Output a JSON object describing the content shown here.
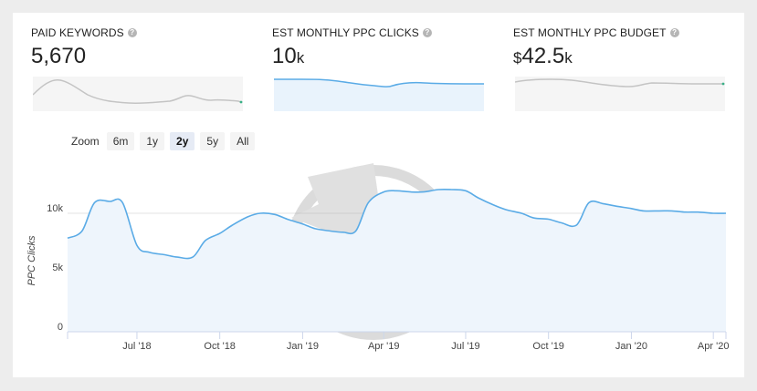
{
  "metrics": [
    {
      "label": "PAID KEYWORDS",
      "value": "5,670",
      "suffix": "",
      "prefix": ""
    },
    {
      "label": "EST MONTHLY PPC CLICKS",
      "value": "10",
      "suffix": "k",
      "prefix": ""
    },
    {
      "label": "EST MONTHLY PPC BUDGET",
      "value": "42.5",
      "suffix": "k",
      "prefix": "$"
    }
  ],
  "zoom": {
    "label": "Zoom",
    "options": [
      "6m",
      "1y",
      "2y",
      "5y",
      "All"
    ],
    "selected": "2y"
  },
  "colors": {
    "line": "#5aabe6",
    "fill": "#eef5fc",
    "spark_gray": "#c4c4c4",
    "grid": "#e3e3e3"
  },
  "chart_data": {
    "type": "area",
    "ylabel": "PPC Clicks",
    "ylim": [
      0,
      14000
    ],
    "y_ticks": [
      {
        "label": "0",
        "value": 0
      },
      {
        "label": "5k",
        "value": 5000
      },
      {
        "label": "10k",
        "value": 10000
      }
    ],
    "x_ticks": [
      {
        "label": "Jul '18",
        "date": "2018-07-01"
      },
      {
        "label": "Oct '18",
        "date": "2018-10-01"
      },
      {
        "label": "Jan '19",
        "date": "2019-01-01"
      },
      {
        "label": "Apr '19",
        "date": "2019-04-01"
      },
      {
        "label": "Jul '19",
        "date": "2019-07-01"
      },
      {
        "label": "Oct '19",
        "date": "2019-10-01"
      },
      {
        "label": "Jan '20",
        "date": "2020-01-01"
      },
      {
        "label": "Apr '20",
        "date": "2020-04-01"
      }
    ],
    "x_range": [
      "2018-04-15",
      "2020-04-15"
    ],
    "series": [
      {
        "values": [
          [
            "2018-04-15",
            7900
          ],
          [
            "2018-05-01",
            8500
          ],
          [
            "2018-05-15",
            10900
          ],
          [
            "2018-06-01",
            11000
          ],
          [
            "2018-06-15",
            10900
          ],
          [
            "2018-07-01",
            7300
          ],
          [
            "2018-07-15",
            6700
          ],
          [
            "2018-08-01",
            6500
          ],
          [
            "2018-08-15",
            6300
          ],
          [
            "2018-09-01",
            6300
          ],
          [
            "2018-09-15",
            7700
          ],
          [
            "2018-10-01",
            8300
          ],
          [
            "2018-10-15",
            9000
          ],
          [
            "2018-11-01",
            9700
          ],
          [
            "2018-11-15",
            10000
          ],
          [
            "2018-12-01",
            9900
          ],
          [
            "2018-12-15",
            9500
          ],
          [
            "2019-01-01",
            9100
          ],
          [
            "2019-01-15",
            8700
          ],
          [
            "2019-02-01",
            8500
          ],
          [
            "2019-02-15",
            8400
          ],
          [
            "2019-03-01",
            8500
          ],
          [
            "2019-03-15",
            10900
          ],
          [
            "2019-04-01",
            11800
          ],
          [
            "2019-04-15",
            11900
          ],
          [
            "2019-05-01",
            11800
          ],
          [
            "2019-05-15",
            11800
          ],
          [
            "2019-06-01",
            12000
          ],
          [
            "2019-06-15",
            12000
          ],
          [
            "2019-07-01",
            11900
          ],
          [
            "2019-07-15",
            11300
          ],
          [
            "2019-08-01",
            10700
          ],
          [
            "2019-08-15",
            10300
          ],
          [
            "2019-09-01",
            10000
          ],
          [
            "2019-09-15",
            9600
          ],
          [
            "2019-10-01",
            9500
          ],
          [
            "2019-10-15",
            9200
          ],
          [
            "2019-11-01",
            9000
          ],
          [
            "2019-11-15",
            10900
          ],
          [
            "2019-12-01",
            10800
          ],
          [
            "2019-12-15",
            10600
          ],
          [
            "2020-01-01",
            10400
          ],
          [
            "2020-01-15",
            10200
          ],
          [
            "2020-02-01",
            10200
          ],
          [
            "2020-02-15",
            10200
          ],
          [
            "2020-03-01",
            10100
          ],
          [
            "2020-03-15",
            10100
          ],
          [
            "2020-04-01",
            10000
          ],
          [
            "2020-04-15",
            10000
          ]
        ]
      }
    ]
  }
}
